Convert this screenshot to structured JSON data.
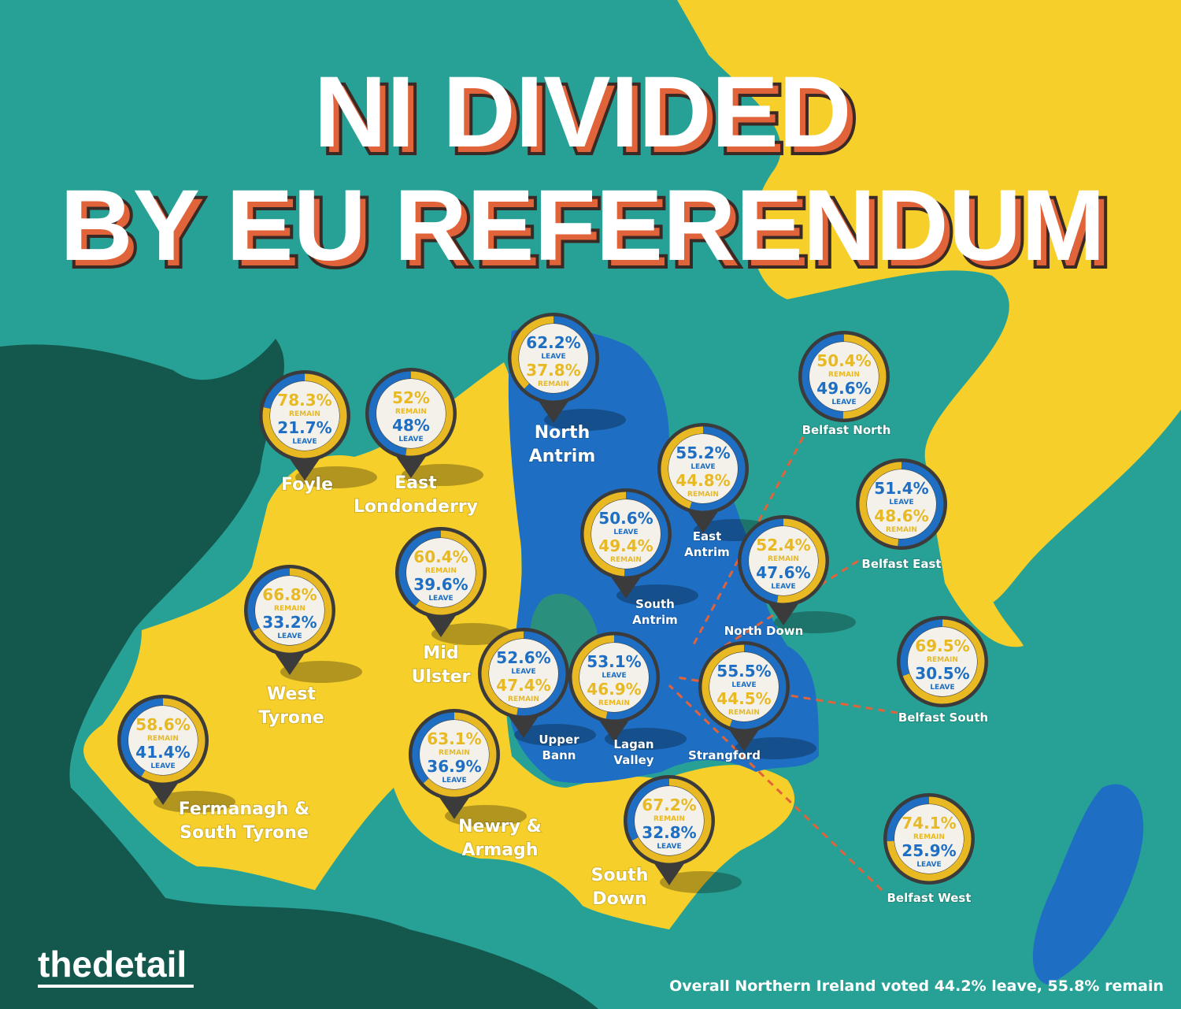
{
  "title": {
    "line1": "NI DIVIDED",
    "line2": "BY EU REFERENDUM"
  },
  "constituencies": [
    {
      "name": [
        "Foyle"
      ],
      "first": {
        "value": 78.3,
        "label": "78.3%",
        "word": "REMAIN"
      },
      "second": {
        "value": 21.7,
        "label": "21.7%",
        "word": "LEAVE"
      }
    },
    {
      "name": [
        "East",
        "Londonderry"
      ],
      "first": {
        "value": 52,
        "label": "52%",
        "word": "REMAIN"
      },
      "second": {
        "value": 48,
        "label": "48%",
        "word": "LEAVE"
      }
    },
    {
      "name": [
        "North",
        "Antrim"
      ],
      "first": {
        "value": 62.2,
        "label": "62.2%",
        "word": "LEAVE"
      },
      "second": {
        "value": 37.8,
        "label": "37.8%",
        "word": "REMAIN"
      }
    },
    {
      "name": [
        "East",
        "Antrim"
      ],
      "first": {
        "value": 55.2,
        "label": "55.2%",
        "word": "LEAVE"
      },
      "second": {
        "value": 44.8,
        "label": "44.8%",
        "word": "REMAIN"
      }
    },
    {
      "name": [
        "South",
        "Antrim"
      ],
      "first": {
        "value": 50.6,
        "label": "50.6%",
        "word": "LEAVE"
      },
      "second": {
        "value": 49.4,
        "label": "49.4%",
        "word": "REMAIN"
      }
    },
    {
      "name": [
        "Mid",
        "Ulster"
      ],
      "first": {
        "value": 60.4,
        "label": "60.4%",
        "word": "REMAIN"
      },
      "second": {
        "value": 39.6,
        "label": "39.6%",
        "word": "LEAVE"
      }
    },
    {
      "name": [
        "West",
        "Tyrone"
      ],
      "first": {
        "value": 66.8,
        "label": "66.8%",
        "word": "REMAIN"
      },
      "second": {
        "value": 33.2,
        "label": "33.2%",
        "word": "LEAVE"
      }
    },
    {
      "name": [
        "Fermanagh &",
        "South Tyrone"
      ],
      "first": {
        "value": 58.6,
        "label": "58.6%",
        "word": "REMAIN"
      },
      "second": {
        "value": 41.4,
        "label": "41.4%",
        "word": "LEAVE"
      }
    },
    {
      "name": [
        "Newry &",
        "Armagh"
      ],
      "first": {
        "value": 63.1,
        "label": "63.1%",
        "word": "REMAIN"
      },
      "second": {
        "value": 36.9,
        "label": "36.9%",
        "word": "LEAVE"
      }
    },
    {
      "name": [
        "Upper",
        "Bann"
      ],
      "first": {
        "value": 52.6,
        "label": "52.6%",
        "word": "LEAVE"
      },
      "second": {
        "value": 47.4,
        "label": "47.4%",
        "word": "REMAIN"
      }
    },
    {
      "name": [
        "Lagan",
        "Valley"
      ],
      "first": {
        "value": 53.1,
        "label": "53.1%",
        "word": "LEAVE"
      },
      "second": {
        "value": 46.9,
        "label": "46.9%",
        "word": "REMAIN"
      }
    },
    {
      "name": [
        "Strangford"
      ],
      "first": {
        "value": 55.5,
        "label": "55.5%",
        "word": "LEAVE"
      },
      "second": {
        "value": 44.5,
        "label": "44.5%",
        "word": "REMAIN"
      }
    },
    {
      "name": [
        "South",
        "Down"
      ],
      "first": {
        "value": 67.2,
        "label": "67.2%",
        "word": "REMAIN"
      },
      "second": {
        "value": 32.8,
        "label": "32.8%",
        "word": "LEAVE"
      }
    },
    {
      "name": [
        "North Down"
      ],
      "first": {
        "value": 52.4,
        "label": "52.4%",
        "word": "REMAIN"
      },
      "second": {
        "value": 47.6,
        "label": "47.6%",
        "word": "LEAVE"
      }
    },
    {
      "name": [
        "Belfast North"
      ],
      "first": {
        "value": 50.4,
        "label": "50.4%",
        "word": "REMAIN"
      },
      "second": {
        "value": 49.6,
        "label": "49.6%",
        "word": "LEAVE"
      }
    },
    {
      "name": [
        "Belfast East"
      ],
      "first": {
        "value": 51.4,
        "label": "51.4%",
        "word": "LEAVE"
      },
      "second": {
        "value": 48.6,
        "label": "48.6%",
        "word": "REMAIN"
      }
    },
    {
      "name": [
        "Belfast South"
      ],
      "first": {
        "value": 69.5,
        "label": "69.5%",
        "word": "REMAIN"
      },
      "second": {
        "value": 30.5,
        "label": "30.5%",
        "word": "LEAVE"
      }
    },
    {
      "name": [
        "Belfast West"
      ],
      "first": {
        "value": 74.1,
        "label": "74.1%",
        "word": "REMAIN"
      },
      "second": {
        "value": 25.9,
        "label": "25.9%",
        "word": "LEAVE"
      }
    }
  ],
  "logo": "thedetail",
  "footnote": "Overall Northern Ireland voted 44.2% leave, 55.8% remain"
}
